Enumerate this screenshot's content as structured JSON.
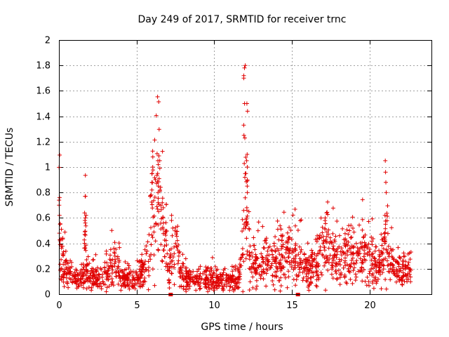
{
  "chart_data": {
    "type": "scatter",
    "title": "Day 249 of 2017, SRMTID for receiver trnc",
    "xlabel": "GPS time / hours",
    "ylabel": "SRMTID / TECUs",
    "xlim": [
      0,
      24
    ],
    "ylim": [
      0,
      2
    ],
    "xticks": [
      0,
      5,
      10,
      15,
      20
    ],
    "xtick_labels": [
      "0",
      "5",
      "10",
      "15",
      "20"
    ],
    "yticks": [
      0,
      0.2,
      0.4,
      0.6,
      0.8,
      1,
      1.2,
      1.4,
      1.6,
      1.8,
      2
    ],
    "ytick_labels": [
      "0",
      "0.2",
      "0.4",
      "0.6",
      "0.8",
      "1",
      "1.2",
      "1.4",
      "1.6",
      "1.8",
      "2"
    ],
    "grid": true,
    "marker": "+",
    "series_color": "#e00000",
    "profile": {
      "x": [
        0,
        0.1,
        0.3,
        0.8,
        1.2,
        1.6,
        1.7,
        1.8,
        2.2,
        3.0,
        3.4,
        3.7,
        4.0,
        4.6,
        5.0,
        5.5,
        5.8,
        6.0,
        6.2,
        6.5,
        6.8,
        7.1,
        7.4,
        7.6,
        7.8,
        8.2,
        9.0,
        10.0,
        11.0,
        11.6,
        11.9,
        12.0,
        12.1,
        12.3,
        13.0,
        14.0,
        14.7,
        15.0,
        15.5,
        16.0,
        16.5,
        17.0,
        17.3,
        17.8,
        18.5,
        19.0,
        19.5,
        20.0,
        20.5,
        20.9,
        21.1,
        21.3,
        21.6,
        22.0,
        22.7
      ],
      "y": [
        0.65,
        0.3,
        0.2,
        0.14,
        0.1,
        0.14,
        0.5,
        0.2,
        0.12,
        0.15,
        0.2,
        0.22,
        0.12,
        0.1,
        0.12,
        0.18,
        0.35,
        0.7,
        0.8,
        0.7,
        0.45,
        0.2,
        0.3,
        0.4,
        0.15,
        0.12,
        0.12,
        0.11,
        0.1,
        0.12,
        0.5,
        0.8,
        0.55,
        0.25,
        0.22,
        0.25,
        0.35,
        0.3,
        0.25,
        0.22,
        0.2,
        0.3,
        0.4,
        0.25,
        0.3,
        0.32,
        0.3,
        0.25,
        0.22,
        0.3,
        0.45,
        0.3,
        0.2,
        0.18,
        0.18
      ]
    },
    "peaks": [
      {
        "x": 0.05,
        "ys": [
          0.76,
          0.74,
          0.7,
          0.62,
          0.55,
          0.48,
          0.42
        ]
      },
      {
        "x": 1.7,
        "ys": [
          0.64,
          0.62,
          0.6,
          0.58,
          0.56,
          0.47,
          0.4
        ]
      },
      {
        "x": 6.0,
        "ys": [
          1.08,
          1.0,
          0.95,
          0.88,
          0.82,
          0.78
        ]
      },
      {
        "x": 6.4,
        "ys": [
          1.05,
          1.02,
          0.95,
          0.85,
          0.8,
          0.72,
          0.65
        ]
      },
      {
        "x": 6.7,
        "ys": [
          0.72,
          0.68,
          0.6,
          0.56
        ]
      },
      {
        "x": 7.3,
        "ys": [
          0.62,
          0.58,
          0.52,
          0.46
        ]
      },
      {
        "x": 11.95,
        "ys": [
          1.8,
          1.78,
          1.72,
          1.7,
          1.5,
          1.33,
          1.25
        ]
      },
      {
        "x": 12.1,
        "ys": [
          1.5,
          1.44,
          1.1,
          1.05,
          1.0,
          0.95,
          0.9,
          0.85,
          0.8,
          0.68,
          0.66,
          0.56,
          0.55,
          0.44
        ]
      },
      {
        "x": 17.2,
        "ys": [
          0.64,
          0.6,
          0.58
        ]
      },
      {
        "x": 18.7,
        "ys": [
          0.54,
          0.5
        ]
      },
      {
        "x": 21.05,
        "ys": [
          1.05,
          0.96,
          0.88,
          0.8,
          0.62,
          0.55,
          0.45,
          0.4
        ]
      }
    ],
    "gap_markers_x": [
      7.2,
      15.4
    ],
    "samples": 1700,
    "seed": 249
  }
}
